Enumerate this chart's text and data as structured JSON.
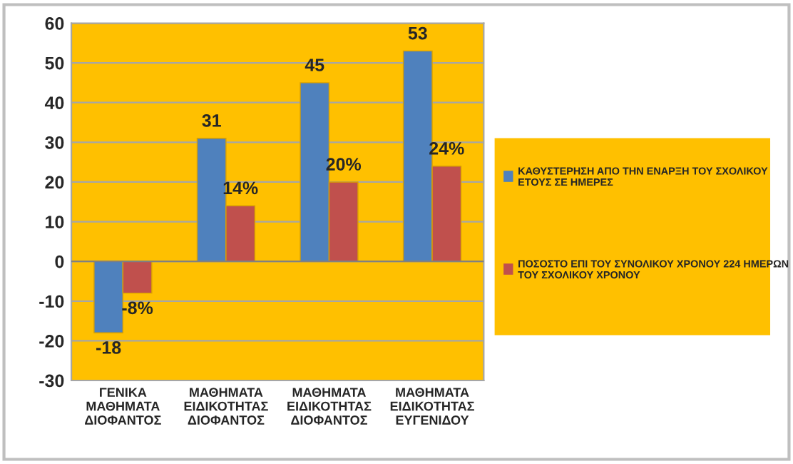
{
  "chart_data": {
    "type": "bar",
    "categories": [
      "ΓΕΝΙΚΑ ΜΑΘΗΜΑΤΑ ΔΙΟΦΑΝΤΟΣ",
      "ΜΑΘΗΜΑΤΑ ΕΙΔΙΚΟΤΗΤΑΣ ΔΙΟΦΑΝΤΟΣ",
      "ΜΑΘΗΜΑΤΑ ΕΙΔΙΚΟΤΗΤΑΣ ΔΙΟΦΑΝΤΟΣ",
      "ΜΑΘΗΜΑΤΑ ΕΙΔΙΚΟΤΗΤΑΣ ΕΥΓΕΝΙΔΟΥ"
    ],
    "series": [
      {
        "name": "ΚΑΘΥΣΤΕΡΗΣΗ ΑΠΟ ΤΗΝ ΕΝΑΡΞΗ ΤΟΥ ΣΧΟΛΙΚΟΥ ΕΤΟΥΣ ΣΕ ΗΜΕΡΕΣ",
        "color": "#4f81bd",
        "values": [
          -18,
          31,
          45,
          53
        ],
        "value_labels": [
          "-18",
          "31",
          "45",
          "53"
        ]
      },
      {
        "name": "ΠΟΣΟΣΤΟ ΕΠΙ ΤΟΥ ΣΥΝΟΛΙΚΟΥ ΧΡΟΝΟΥ 224 ΗΜΕΡΩΝ ΤΟΥ ΣΧΟΛΙΚΟΥ ΧΡΟΝΟΥ",
        "color": "#c0504d",
        "values": [
          -8,
          14,
          20,
          24
        ],
        "value_labels": [
          "-8%",
          "14%",
          "20%",
          "24%"
        ]
      }
    ],
    "ylim": [
      -30,
      60
    ],
    "yticks": [
      -30,
      -20,
      -10,
      0,
      10,
      20,
      30,
      40,
      50,
      60
    ],
    "grid": "y",
    "legend": "right"
  }
}
